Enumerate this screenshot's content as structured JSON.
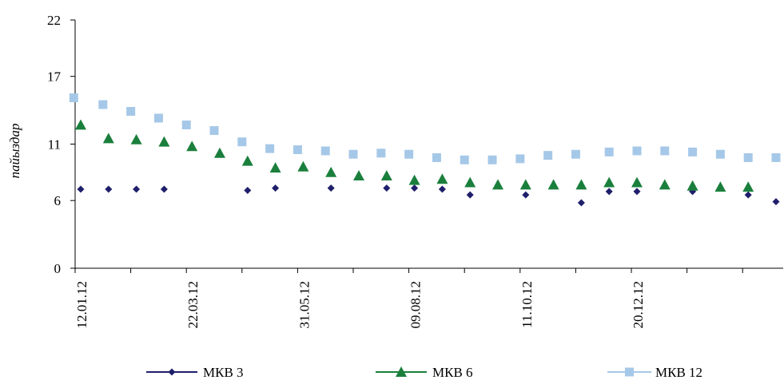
{
  "chart_data": {
    "type": "scatter",
    "ylabel": "пайыздар",
    "xlabel": "",
    "ylim": [
      0,
      22
    ],
    "yticks": [
      0,
      6,
      11,
      17,
      22
    ],
    "xticks": [
      "12.01.12",
      "22.03.12",
      "31.05.12",
      "09.08.12",
      "11.10.12",
      "20.12.12"
    ],
    "grid": false,
    "legend_position": "bottom",
    "series": [
      {
        "name": "МКВ 3",
        "color": "#1F1F6B",
        "marker": "diamond",
        "x": [
          0,
          1,
          2,
          3,
          6,
          7,
          9,
          11,
          12,
          13,
          14,
          16,
          18,
          19,
          20,
          22,
          24,
          25
        ],
        "y": [
          7.0,
          7.0,
          7.0,
          7.0,
          6.9,
          7.1,
          7.1,
          7.1,
          7.1,
          7.0,
          6.5,
          6.5,
          5.8,
          6.8,
          6.8,
          6.8,
          6.5,
          5.9
        ]
      },
      {
        "name": "МКВ 6",
        "color": "#1A7F3C",
        "marker": "triangle",
        "x": [
          0,
          1,
          2,
          3,
          4,
          5,
          6,
          7,
          8,
          9,
          10,
          11,
          12,
          13,
          14,
          15,
          16,
          17,
          18,
          19,
          20,
          21,
          22,
          23,
          24
        ],
        "y": [
          12.7,
          11.5,
          11.4,
          11.2,
          10.8,
          10.2,
          9.5,
          8.9,
          9.0,
          8.5,
          8.2,
          8.2,
          7.8,
          7.9,
          7.6,
          7.4,
          7.4,
          7.4,
          7.4,
          7.6,
          7.6,
          7.4,
          7.3,
          7.2,
          7.2
        ]
      },
      {
        "name": "МКВ 12",
        "color": "#A6C8E8",
        "marker": "square",
        "x": [
          -0.25,
          0.8,
          1.8,
          2.8,
          3.8,
          4.8,
          5.8,
          6.8,
          7.8,
          8.8,
          9.8,
          10.8,
          11.8,
          12.8,
          13.8,
          14.8,
          15.8,
          16.8,
          17.8,
          19.0,
          20.0,
          21.0,
          22.0,
          23.0,
          24.0,
          25.0,
          25.5
        ],
        "y": [
          15.1,
          14.5,
          13.9,
          13.3,
          12.7,
          12.2,
          11.2,
          10.6,
          10.5,
          10.4,
          10.1,
          10.2,
          10.1,
          9.8,
          9.6,
          9.6,
          9.7,
          10.0,
          10.1,
          10.3,
          10.4,
          10.4,
          10.3,
          10.1,
          9.8,
          9.8,
          9.8
        ]
      }
    ]
  }
}
